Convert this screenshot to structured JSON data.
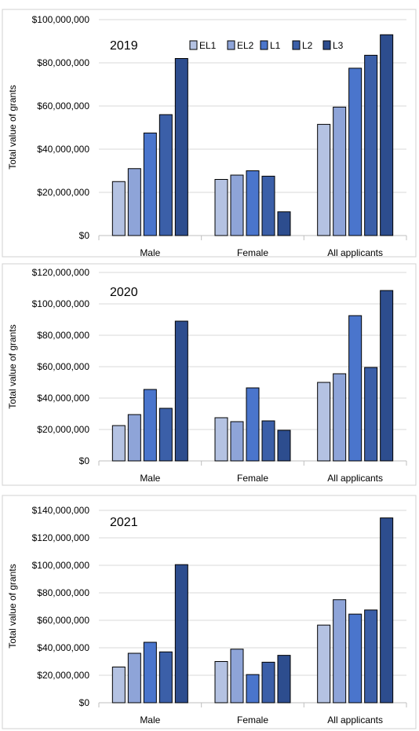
{
  "chart_data": [
    {
      "type": "bar",
      "title": "2019",
      "ylabel": "Total value of grants",
      "ylim": [
        0,
        100000000
      ],
      "yticks": [
        "$0",
        "$20,000,000",
        "$40,000,000",
        "$60,000,000",
        "$80,000,000",
        "$100,000,000"
      ],
      "categories": [
        "Male",
        "Female",
        "All applicants"
      ],
      "legend": "top-right",
      "series": [
        {
          "name": "EL1",
          "color": "#b4c2e2",
          "values": [
            25000000,
            26000000,
            51500000
          ]
        },
        {
          "name": "EL2",
          "color": "#8ea4d8",
          "values": [
            31000000,
            28000000,
            59500000
          ]
        },
        {
          "name": "L1",
          "color": "#4a75cc",
          "values": [
            47500000,
            30000000,
            77500000
          ]
        },
        {
          "name": "L2",
          "color": "#3b5fa8",
          "values": [
            56000000,
            27500000,
            83500000
          ]
        },
        {
          "name": "L3",
          "color": "#2d4d8e",
          "values": [
            82000000,
            11000000,
            93000000
          ]
        }
      ]
    },
    {
      "type": "bar",
      "title": "2020",
      "ylabel": "Total value of grants",
      "ylim": [
        0,
        120000000
      ],
      "yticks": [
        "$0",
        "$20,000,000",
        "$40,000,000",
        "$60,000,000",
        "$80,000,000",
        "$100,000,000",
        "$120,000,000"
      ],
      "categories": [
        "Male",
        "Female",
        "All applicants"
      ],
      "series": [
        {
          "name": "EL1",
          "color": "#b4c2e2",
          "values": [
            22500000,
            27500000,
            50000000
          ]
        },
        {
          "name": "EL2",
          "color": "#8ea4d8",
          "values": [
            29500000,
            25000000,
            55500000
          ]
        },
        {
          "name": "L1",
          "color": "#4a75cc",
          "values": [
            45500000,
            46500000,
            92500000
          ]
        },
        {
          "name": "L2",
          "color": "#3b5fa8",
          "values": [
            33500000,
            25500000,
            59500000
          ]
        },
        {
          "name": "L3",
          "color": "#2d4d8e",
          "values": [
            89000000,
            19500000,
            108500000
          ]
        }
      ]
    },
    {
      "type": "bar",
      "title": "2021",
      "ylabel": "Total value of grants",
      "ylim": [
        0,
        140000000
      ],
      "yticks": [
        "$0",
        "$20,000,000",
        "$40,000,000",
        "$60,000,000",
        "$80,000,000",
        "$100,000,000",
        "$120,000,000",
        "$140,000,000"
      ],
      "categories": [
        "Male",
        "Female",
        "All applicants"
      ],
      "series": [
        {
          "name": "EL1",
          "color": "#b4c2e2",
          "values": [
            26000000,
            30000000,
            56500000
          ]
        },
        {
          "name": "EL2",
          "color": "#8ea4d8",
          "values": [
            36000000,
            39000000,
            75000000
          ]
        },
        {
          "name": "L1",
          "color": "#4a75cc",
          "values": [
            44000000,
            20500000,
            64500000
          ]
        },
        {
          "name": "L2",
          "color": "#3b5fa8",
          "values": [
            37000000,
            29500000,
            67500000
          ]
        },
        {
          "name": "L3",
          "color": "#2d4d8e",
          "values": [
            100500000,
            34500000,
            134500000
          ]
        }
      ]
    }
  ]
}
